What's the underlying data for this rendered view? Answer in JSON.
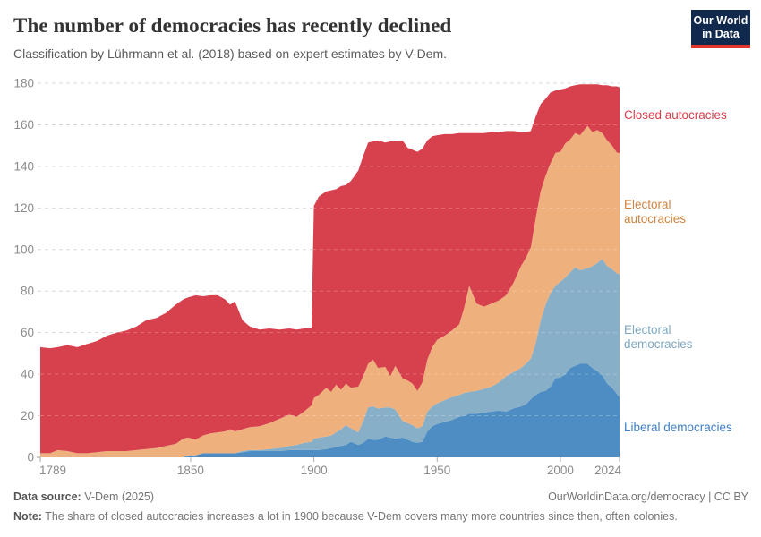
{
  "header": {
    "title": "The number of democracies has recently declined",
    "subtitle": "Classification by Lührmann et al. (2018) based on expert estimates by V-Dem.",
    "logo": {
      "line1": "Our World",
      "line2": "in Data",
      "bg_color": "#12294e",
      "bar_color": "#e0362c"
    }
  },
  "footer": {
    "source_label": "Data source:",
    "source_value": " V-Dem (2025)",
    "link": "OurWorldinData.org/democracy",
    "separator": " | ",
    "license": "CC BY",
    "note_label": "Note:",
    "note_text": " The share of closed autocracies increases a lot in 1900 because V-Dem covers many more countries since then, often colonies."
  },
  "chart_data": {
    "type": "area",
    "stacked": true,
    "title": "The number of democracies has recently declined",
    "xlabel": "",
    "ylabel": "",
    "xlim": [
      1789,
      2024
    ],
    "ylim": [
      0,
      180
    ],
    "grid": "dashed-horizontal",
    "legend_position": "right",
    "x_ticks": [
      1789,
      1850,
      1900,
      1950,
      2000,
      2024
    ],
    "y_ticks": [
      0,
      20,
      40,
      60,
      80,
      100,
      120,
      140,
      160,
      180
    ],
    "axis_text_color": "#8b8b8b",
    "gridline_color": "#d6d6d6",
    "x": [
      1789,
      1793,
      1796,
      1800,
      1804,
      1808,
      1812,
      1816,
      1820,
      1824,
      1828,
      1832,
      1836,
      1840,
      1844,
      1847,
      1849,
      1852,
      1855,
      1858,
      1861,
      1864,
      1866,
      1868,
      1871,
      1874,
      1878,
      1882,
      1886,
      1890,
      1893,
      1896,
      1899,
      1900,
      1902,
      1905,
      1907,
      1909,
      1911,
      1913,
      1915,
      1918,
      1920,
      1922,
      1924,
      1926,
      1929,
      1931,
      1933,
      1936,
      1938,
      1940,
      1942,
      1944,
      1946,
      1948,
      1950,
      1953,
      1956,
      1959,
      1961,
      1963,
      1966,
      1969,
      1972,
      1975,
      1978,
      1981,
      1984,
      1986,
      1988,
      1990,
      1992,
      1994,
      1996,
      1998,
      2000,
      2002,
      2004,
      2006,
      2008,
      2011,
      2013,
      2015,
      2017,
      2019,
      2021,
      2023,
      2024
    ],
    "series": [
      {
        "name": "Liberal democracies",
        "color": "#4e8dc3",
        "label_color": "#3f80c4",
        "values": [
          0,
          0,
          0,
          0,
          0,
          0,
          0,
          0,
          0,
          0,
          0,
          0,
          0,
          0,
          0,
          0,
          1,
          1,
          2,
          2,
          2,
          2,
          2,
          2,
          2.5,
          3,
          3,
          3,
          3,
          3.5,
          3.5,
          3.5,
          3.5,
          3.5,
          3.5,
          4,
          4.5,
          5,
          5.5,
          6,
          7.5,
          6,
          7,
          9,
          8.5,
          8.5,
          10,
          9.5,
          9,
          9.5,
          8.5,
          7.5,
          7,
          7.5,
          12.5,
          15,
          16,
          17,
          18,
          19.5,
          20,
          21,
          21,
          21.5,
          22,
          22.5,
          22,
          23.5,
          24.5,
          25.5,
          28,
          30,
          31.5,
          32,
          34,
          38,
          38.5,
          40,
          43,
          44,
          45,
          45,
          43,
          41.5,
          39.5,
          35.5,
          33.5,
          30.5,
          29
        ]
      },
      {
        "name": "Electoral democracies",
        "color": "#88afc8",
        "label_color": "#7fa8c3",
        "values": [
          0,
          0,
          0,
          0,
          0,
          0,
          0,
          0,
          0,
          0,
          0,
          0,
          0,
          0,
          0,
          0,
          0,
          0,
          0,
          0,
          0,
          0,
          0,
          0,
          0.5,
          0.5,
          0.5,
          1,
          1.5,
          2,
          2.5,
          3.5,
          4,
          5.5,
          6,
          6,
          6,
          7,
          8,
          9.5,
          6.5,
          6,
          10.5,
          15,
          16,
          15,
          14,
          14.5,
          14,
          8,
          8,
          8,
          7,
          7.5,
          9.5,
          9.5,
          10,
          10.5,
          11,
          10.5,
          11,
          10.5,
          11,
          11.5,
          12,
          13.5,
          17,
          17.5,
          18.5,
          19.5,
          19.5,
          25,
          34.5,
          41.5,
          45,
          44.5,
          46,
          46.5,
          46,
          47.5,
          45,
          46,
          49,
          52,
          56,
          56.5,
          57,
          58,
          59
        ]
      },
      {
        "name": "Electoral autocracies",
        "color": "#eeb07d",
        "label_color": "#cf8440",
        "values": [
          2,
          2,
          3.5,
          3,
          2,
          2,
          2.5,
          3,
          3,
          3,
          3.5,
          4,
          4.5,
          5.5,
          6.5,
          9,
          8.5,
          7.5,
          8.5,
          9.5,
          10,
          10.5,
          11.5,
          10.5,
          10.5,
          11,
          11.5,
          12.5,
          14,
          15,
          13.5,
          15,
          17.5,
          19.5,
          20.5,
          23.5,
          21,
          23,
          19,
          20,
          19.5,
          22,
          21.5,
          21,
          22.5,
          19.5,
          19.5,
          15,
          21,
          20.5,
          20.5,
          20,
          18,
          21,
          25,
          28.5,
          30.5,
          31,
          32,
          34,
          41,
          51,
          42,
          39.5,
          40,
          39.5,
          39,
          43,
          49,
          51,
          53.5,
          60,
          62,
          62,
          62.5,
          64,
          62.5,
          64.5,
          64,
          64.5,
          65,
          68.5,
          64.5,
          64,
          60.5,
          60.5,
          59.5,
          58,
          58.5
        ]
      },
      {
        "name": "Closed autocracies",
        "color": "#d7414e",
        "label_color": "#d63e4b",
        "values": [
          51,
          50.5,
          49.5,
          51,
          51,
          52.5,
          53.5,
          55.5,
          57,
          58,
          59.5,
          62,
          62.5,
          64,
          67,
          67,
          67.5,
          69.5,
          67,
          66.5,
          66,
          63.5,
          60,
          62.5,
          52.5,
          48.5,
          46.5,
          45.5,
          43,
          41.5,
          42,
          40,
          37,
          92.5,
          95.5,
          94.5,
          97,
          94,
          98,
          95.5,
          99.5,
          104,
          106,
          106.5,
          105,
          109.5,
          108,
          113,
          108,
          114.5,
          112,
          112.5,
          115,
          112.5,
          105.5,
          101.5,
          98.5,
          97,
          94.5,
          92,
          84,
          73.5,
          82,
          83.5,
          82.5,
          81,
          79,
          73,
          64.5,
          60.5,
          56,
          49,
          42,
          37,
          34,
          30,
          30,
          26.5,
          25.5,
          23,
          24.5,
          20,
          23,
          22,
          23,
          26.5,
          28.5,
          32,
          31.5
        ]
      }
    ]
  }
}
